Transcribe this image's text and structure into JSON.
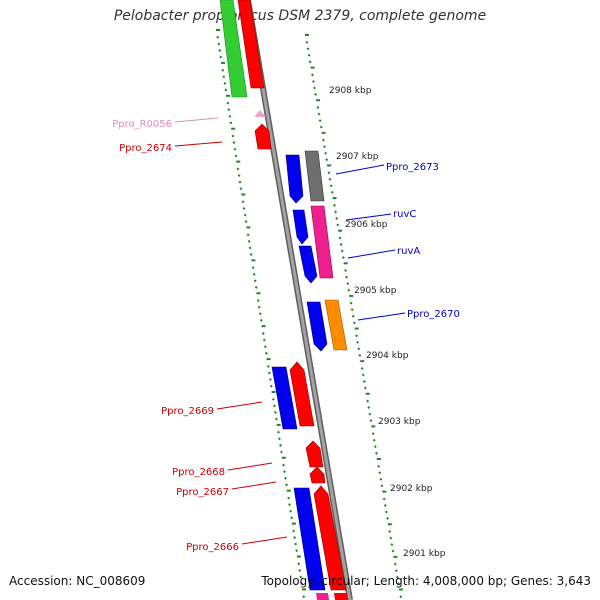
{
  "title": "Pelobacter propionicus DSM 2379, complete genome",
  "footer": {
    "accession": "Accession: NC_008609",
    "summary": "Topology: circular; Length: 4,008,000 bp; Genes: 3,643"
  },
  "ruler_labels": [
    "2908 kbp",
    "2907 kbp",
    "2906 kbp",
    "2905 kbp",
    "2904 kbp",
    "2903 kbp",
    "2902 kbp",
    "2901 kbp"
  ],
  "gene_labels": [
    {
      "name": "Ppro_R0056",
      "color": "#e68ac0"
    },
    {
      "name": "Ppro_2674",
      "color": "#cc0000"
    },
    {
      "name": "Ppro_2673",
      "color": "#0000cc"
    },
    {
      "name": "ruvC",
      "color": "#0000cc"
    },
    {
      "name": "ruvA",
      "color": "#0000cc"
    },
    {
      "name": "Ppro_2670",
      "color": "#0000cc"
    },
    {
      "name": "Ppro_2669",
      "color": "#cc0000"
    },
    {
      "name": "Ppro_2668",
      "color": "#cc0000"
    },
    {
      "name": "Ppro_2667",
      "color": "#cc0000"
    },
    {
      "name": "Ppro_2666",
      "color": "#cc0000"
    }
  ],
  "colors": {
    "backbone": "#8a8a8a",
    "gc_dots": "#1a8a1a",
    "forward_red": "#ff0000",
    "reverse_blue": "#0000ee",
    "magenta": "#ee1f8f",
    "orange": "#ff8c00",
    "green": "#33cc33",
    "grey": "#6f6f6f",
    "rrna_pink": "#f3a2cf"
  }
}
